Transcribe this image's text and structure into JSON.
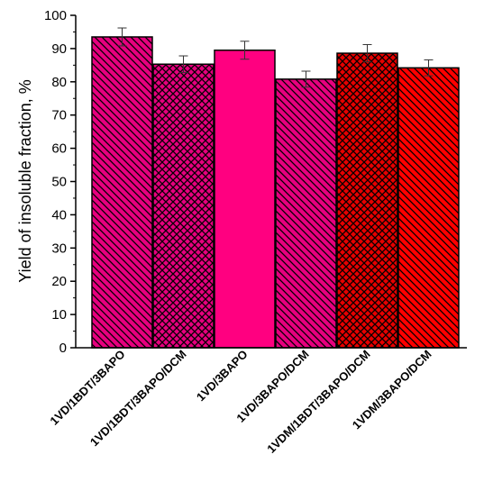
{
  "chart_data": {
    "type": "bar",
    "title": "",
    "xlabel": "",
    "ylabel": "Yield of insoluble fraction, %",
    "ylim": [
      0,
      100
    ],
    "yticks": [
      0,
      10,
      20,
      30,
      40,
      50,
      60,
      70,
      80,
      90,
      100
    ],
    "grid": false,
    "categories": [
      "1VD/1BDT/3BAPO",
      "1VD/1BDT/3BAPO/DCM",
      "1VD/3BAPO",
      "1VD/3BAPO/DCM",
      "1VDM/1BDT/3BAPO/DCM",
      "1VDM/3BAPO/DCM"
    ],
    "values": [
      93.5,
      85.3,
      89.5,
      80.8,
      88.6,
      84.2
    ],
    "errors": [
      2.7,
      2.5,
      2.7,
      2.4,
      2.6,
      2.4
    ],
    "colors": [
      "#e6007e",
      "#e6007e",
      "#ff0080",
      "#e6007e",
      "#e60000",
      "#ff0000"
    ],
    "patterns": [
      "diag-down",
      "crosshatch",
      "solid",
      "diag-down",
      "crosshatch",
      "diag-down"
    ]
  }
}
